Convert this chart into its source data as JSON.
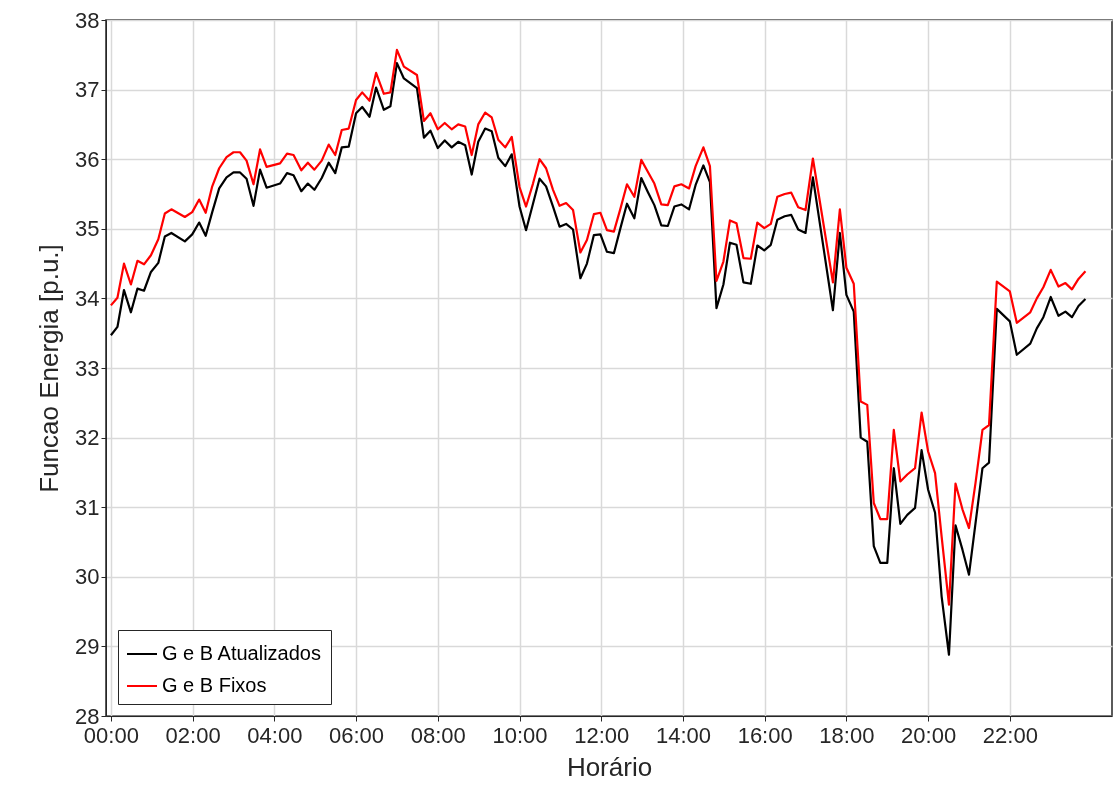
{
  "chart_data": {
    "type": "line",
    "xlabel": "Horário",
    "ylabel": "Funcao Energia [p.u.]",
    "xlim": [
      -0.12,
      24.5
    ],
    "ylim": [
      28,
      38
    ],
    "xticks": [
      {
        "value": 0,
        "label": "00:00"
      },
      {
        "value": 2,
        "label": "02:00"
      },
      {
        "value": 4,
        "label": "04:00"
      },
      {
        "value": 6,
        "label": "06:00"
      },
      {
        "value": 8,
        "label": "08:00"
      },
      {
        "value": 10,
        "label": "10:00"
      },
      {
        "value": 12,
        "label": "12:00"
      },
      {
        "value": 14,
        "label": "14:00"
      },
      {
        "value": 16,
        "label": "16:00"
      },
      {
        "value": 18,
        "label": "18:00"
      },
      {
        "value": 20,
        "label": "20:00"
      },
      {
        "value": 22,
        "label": "22:00"
      }
    ],
    "yticks": [
      28,
      29,
      30,
      31,
      32,
      33,
      34,
      35,
      36,
      37,
      38
    ],
    "x": [
      0,
      0.16,
      0.32,
      0.49,
      0.65,
      0.81,
      0.98,
      1.16,
      1.32,
      1.48,
      1.81,
      1.99,
      2.16,
      2.32,
      2.48,
      2.65,
      2.83,
      3.0,
      3.16,
      3.32,
      3.49,
      3.65,
      3.81,
      4.14,
      4.31,
      4.47,
      4.66,
      4.82,
      4.98,
      5.16,
      5.33,
      5.49,
      5.65,
      5.82,
      6.0,
      6.15,
      6.33,
      6.49,
      6.68,
      6.84,
      7.0,
      7.17,
      7.49,
      7.66,
      7.82,
      8.0,
      8.17,
      8.34,
      8.5,
      8.67,
      8.83,
      8.99,
      9.16,
      9.32,
      9.48,
      9.65,
      9.81,
      10.0,
      10.16,
      10.33,
      10.49,
      10.65,
      10.82,
      10.98,
      11.14,
      11.31,
      11.49,
      11.65,
      11.82,
      11.98,
      12.14,
      12.31,
      12.47,
      12.63,
      12.81,
      12.98,
      13.14,
      13.3,
      13.47,
      13.63,
      13.79,
      13.96,
      14.15,
      14.31,
      14.5,
      14.66,
      14.82,
      14.99,
      15.15,
      15.31,
      15.48,
      15.66,
      15.82,
      15.99,
      16.15,
      16.31,
      16.49,
      16.65,
      16.82,
      17.0,
      17.18,
      17.67,
      17.84,
      18.0,
      18.18,
      18.35,
      18.51,
      18.67,
      18.83,
      19.0,
      19.16,
      19.32,
      19.49,
      19.68,
      19.84,
      20.0,
      20.17,
      20.33,
      20.51,
      20.67,
      20.84,
      21.0,
      21.16,
      21.33,
      21.49,
      21.68,
      22.0,
      22.17,
      22.5,
      22.66,
      22.82,
      23.0,
      23.19,
      23.36,
      23.52,
      23.68,
      23.85
    ],
    "series": [
      {
        "name": "G e B Atualizados",
        "color": "#000000",
        "values": [
          33.47,
          33.59,
          34.12,
          33.8,
          34.14,
          34.11,
          34.38,
          34.51,
          34.89,
          34.94,
          34.82,
          34.92,
          35.09,
          34.9,
          35.24,
          35.58,
          35.74,
          35.81,
          35.81,
          35.72,
          35.33,
          35.85,
          35.59,
          35.65,
          35.8,
          35.77,
          35.54,
          35.65,
          35.56,
          35.73,
          35.95,
          35.8,
          36.17,
          36.18,
          36.66,
          36.75,
          36.61,
          37.03,
          36.71,
          36.76,
          37.38,
          37.16,
          37.02,
          36.31,
          36.41,
          36.16,
          36.27,
          36.17,
          36.25,
          36.2,
          35.78,
          36.25,
          36.44,
          36.4,
          36.02,
          35.9,
          36.07,
          35.32,
          34.98,
          35.36,
          35.72,
          35.61,
          35.32,
          35.03,
          35.07,
          34.99,
          34.29,
          34.5,
          34.91,
          34.92,
          34.67,
          34.65,
          35.01,
          35.36,
          35.15,
          35.73,
          35.53,
          35.34,
          35.05,
          35.04,
          35.32,
          35.35,
          35.28,
          35.63,
          35.91,
          35.67,
          33.86,
          34.2,
          34.8,
          34.77,
          34.23,
          34.21,
          34.76,
          34.69,
          34.77,
          35.13,
          35.18,
          35.2,
          34.99,
          34.94,
          35.74,
          33.83,
          34.94,
          34.05,
          33.81,
          32.0,
          31.94,
          30.44,
          30.2,
          30.2,
          31.56,
          30.76,
          30.89,
          30.99,
          31.82,
          31.25,
          30.92,
          29.72,
          28.88,
          30.74,
          30.39,
          30.03,
          30.77,
          31.56,
          31.64,
          33.85,
          33.67,
          33.19,
          33.35,
          33.57,
          33.73,
          34.02,
          33.75,
          33.81,
          33.73,
          33.89,
          33.99
        ]
      },
      {
        "name": "G e B Fixos",
        "color": "#ff0000",
        "values": [
          33.9,
          34.01,
          34.5,
          34.2,
          34.54,
          34.49,
          34.62,
          34.85,
          35.22,
          35.28,
          35.17,
          35.24,
          35.42,
          35.23,
          35.61,
          35.87,
          36.03,
          36.1,
          36.1,
          35.98,
          35.64,
          36.14,
          35.89,
          35.94,
          36.08,
          36.06,
          35.84,
          35.95,
          35.85,
          35.98,
          36.21,
          36.06,
          36.42,
          36.44,
          36.85,
          36.96,
          36.84,
          37.24,
          36.94,
          36.96,
          37.57,
          37.33,
          37.21,
          36.55,
          36.66,
          36.43,
          36.52,
          36.43,
          36.5,
          36.47,
          36.06,
          36.5,
          36.67,
          36.6,
          36.28,
          36.17,
          36.32,
          35.6,
          35.32,
          35.65,
          36.0,
          35.87,
          35.56,
          35.33,
          35.37,
          35.27,
          34.66,
          34.84,
          35.21,
          35.23,
          34.98,
          34.96,
          35.29,
          35.64,
          35.46,
          35.99,
          35.82,
          35.65,
          35.35,
          35.34,
          35.61,
          35.64,
          35.58,
          35.9,
          36.17,
          35.9,
          34.25,
          34.53,
          35.12,
          35.08,
          34.58,
          34.57,
          35.09,
          35.01,
          35.07,
          35.46,
          35.5,
          35.52,
          35.31,
          35.27,
          36.01,
          34.23,
          35.28,
          34.44,
          34.21,
          32.52,
          32.47,
          31.06,
          30.83,
          30.83,
          32.11,
          31.37,
          31.47,
          31.56,
          32.36,
          31.8,
          31.49,
          30.58,
          29.6,
          31.34,
          30.97,
          30.7,
          31.35,
          32.11,
          32.18,
          34.24,
          34.1,
          33.65,
          33.8,
          34.0,
          34.16,
          34.41,
          34.17,
          34.22,
          34.13,
          34.28,
          34.39
        ]
      }
    ],
    "grid": true,
    "legend": "bottom left",
    "line_style": "solid"
  }
}
